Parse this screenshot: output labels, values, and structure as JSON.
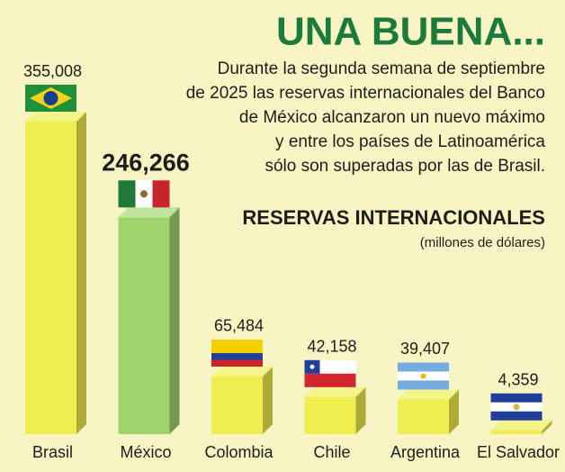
{
  "chart_data": {
    "type": "bar",
    "title": "UNA BUENA...",
    "body": [
      "Durante la segunda semana de septiembre",
      "de 2025 las reservas internacionales del Banco",
      "de México alcanzaron un nuevo máximo",
      "y entre los países de Latinoamérica",
      "sólo son superadas por las de Brasil."
    ],
    "subtitle": "RESERVAS INTERNACIONALES",
    "unit": "(millones de dólares)",
    "categories": [
      "Brasil",
      "México",
      "Colombia",
      "Chile",
      "Argentina",
      "El Salvador"
    ],
    "values": [
      355008,
      246266,
      65484,
      42158,
      39407,
      4359
    ],
    "value_labels": [
      "355,008",
      "246,266",
      "65,484",
      "42,158",
      "39,407",
      "4,359"
    ],
    "colors": [
      "#efee4e",
      "#9fd46c",
      "#efee4e",
      "#efee4e",
      "#efee4e",
      "#efee4e"
    ],
    "emphasis": [
      false,
      true,
      false,
      false,
      false,
      false
    ]
  }
}
